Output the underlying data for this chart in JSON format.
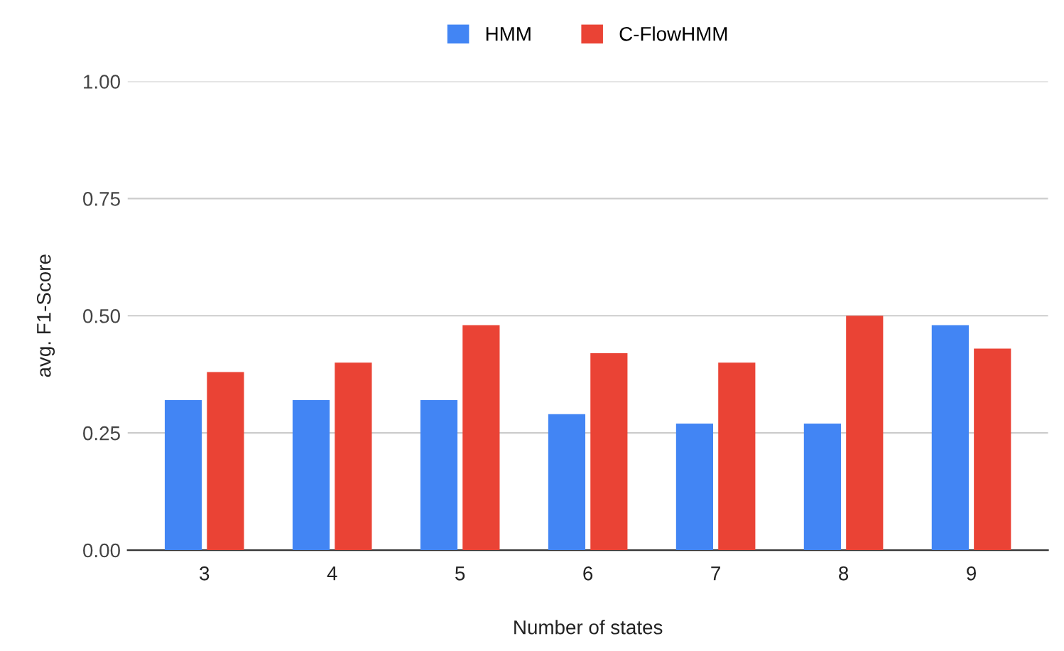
{
  "chart_data": {
    "type": "bar",
    "xlabel": "Number of states",
    "ylabel": "avg. F1-Score",
    "categories": [
      "3",
      "4",
      "5",
      "6",
      "7",
      "8",
      "9"
    ],
    "series": [
      {
        "name": "HMM",
        "color": "#4285f4",
        "values": [
          0.32,
          0.32,
          0.32,
          0.29,
          0.27,
          0.27,
          0.48
        ]
      },
      {
        "name": "C-FlowHMM",
        "color": "#ea4335",
        "values": [
          0.38,
          0.4,
          0.48,
          0.42,
          0.4,
          0.5,
          0.43
        ]
      }
    ],
    "ylim": [
      0,
      1
    ],
    "yticks": [
      {
        "value": 0,
        "label": "0.00"
      },
      {
        "value": 0.25,
        "label": "0.25"
      },
      {
        "value": 0.5,
        "label": "0.50"
      },
      {
        "value": 0.75,
        "label": "0.75"
      },
      {
        "value": 1,
        "label": "1.00"
      }
    ],
    "grid": "y",
    "legend": "top"
  }
}
